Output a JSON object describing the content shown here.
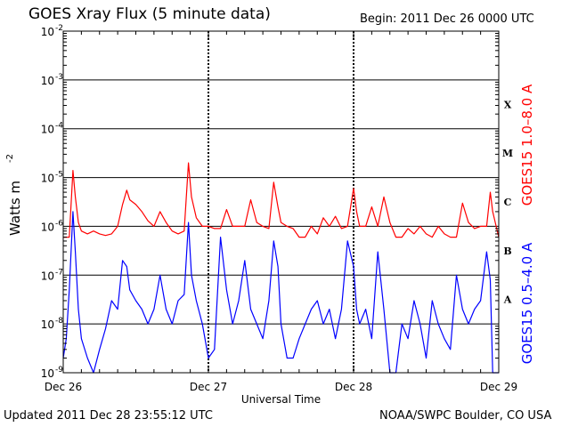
{
  "header": {
    "title": "GOES Xray Flux (5 minute data)",
    "begin": "Begin:  2011 Dec 26 0000 UTC"
  },
  "footer": {
    "updated": "Updated 2011 Dec 28 23:55:12 UTC",
    "source": "NOAA/SWPC Boulder, CO USA"
  },
  "chart_data": {
    "type": "line",
    "xlabel": "Universal Time",
    "ylabel": "Watts m",
    "ylabel_sup": "-2",
    "yscale": "log",
    "ylim": [
      1e-09,
      0.01
    ],
    "xlim": [
      0,
      72
    ],
    "x_unit": "hours since 2011 Dec 26 0000 UTC",
    "x_ticks": [
      {
        "x": 0,
        "label": "Dec 26"
      },
      {
        "x": 24,
        "label": "Dec 27"
      },
      {
        "x": 48,
        "label": "Dec 28"
      },
      {
        "x": 72,
        "label": "Dec 29"
      }
    ],
    "y_ticks": [
      {
        "exp": -9,
        "label": "10",
        "sup": "-9"
      },
      {
        "exp": -8,
        "label": "10",
        "sup": "-8"
      },
      {
        "exp": -7,
        "label": "10",
        "sup": "-7"
      },
      {
        "exp": -6,
        "label": "10",
        "sup": "-6"
      },
      {
        "exp": -5,
        "label": "10",
        "sup": "-5"
      },
      {
        "exp": -4,
        "label": "10",
        "sup": "-4"
      },
      {
        "exp": -3,
        "label": "10",
        "sup": "-3"
      },
      {
        "exp": -2,
        "label": "10",
        "sup": "-2"
      }
    ],
    "flare_classes": [
      {
        "label": "A",
        "exp": -8
      },
      {
        "label": "B",
        "exp": -7
      },
      {
        "label": "C",
        "exp": -6
      },
      {
        "label": "M",
        "exp": -5
      },
      {
        "label": "X",
        "exp": -4
      }
    ],
    "series": [
      {
        "name": "GOES15 1.0–8.0 A",
        "color": "#ff0000",
        "x": [
          0,
          1,
          1.6,
          2,
          2.5,
          3,
          4,
          5,
          6,
          7,
          8,
          9,
          9.8,
          10.5,
          11,
          12,
          13,
          14,
          15,
          16,
          17,
          18,
          19,
          20,
          20.7,
          21.2,
          22,
          23,
          24,
          25,
          26,
          27,
          28,
          29,
          30,
          31,
          32,
          33,
          34,
          34.8,
          35.5,
          36,
          37,
          38,
          39,
          40,
          41,
          42,
          43,
          44,
          45,
          46,
          47,
          48,
          48.5,
          49,
          50,
          51,
          52,
          53,
          54,
          55,
          56,
          57,
          58,
          59,
          60,
          61,
          62,
          63,
          64,
          65,
          66,
          67,
          68,
          69,
          70,
          70.6,
          71,
          72
        ],
        "y": [
          6e-07,
          6e-07,
          1.4e-05,
          4e-06,
          1.2e-06,
          8e-07,
          7e-07,
          8e-07,
          7e-07,
          6.5e-07,
          7e-07,
          1e-06,
          2.8e-06,
          5.5e-06,
          3.5e-06,
          2.8e-06,
          2e-06,
          1.3e-06,
          1e-06,
          2e-06,
          1.2e-06,
          8e-07,
          7e-07,
          8e-07,
          2e-05,
          4e-06,
          1.5e-06,
          1e-06,
          1e-06,
          9e-07,
          9e-07,
          2.2e-06,
          1e-06,
          1e-06,
          1e-06,
          3.5e-06,
          1.2e-06,
          1e-06,
          9e-07,
          8e-06,
          2.5e-06,
          1.2e-06,
          1e-06,
          9e-07,
          6e-07,
          6e-07,
          1e-06,
          7e-07,
          1.5e-06,
          1e-06,
          1.6e-06,
          9e-07,
          1e-06,
          6e-06,
          2e-06,
          1e-06,
          1e-06,
          2.5e-06,
          1e-06,
          4e-06,
          1.2e-06,
          6e-07,
          6e-07,
          9e-07,
          7e-07,
          1e-06,
          7e-07,
          6e-07,
          1e-06,
          7e-07,
          6e-07,
          6e-07,
          3e-06,
          1.2e-06,
          9e-07,
          1e-06,
          1e-06,
          5e-06,
          2e-06,
          6e-07
        ]
      },
      {
        "name": "GOES15 0.5–4.0 A",
        "color": "#0000ff",
        "x": [
          0,
          0.5,
          1,
          1.6,
          2,
          2.5,
          3,
          4,
          5,
          6,
          7,
          8,
          9,
          9.8,
          10.5,
          11,
          12,
          13,
          14,
          15,
          16,
          17,
          18,
          19,
          20,
          20.7,
          21.2,
          22,
          23,
          24,
          25,
          26,
          27,
          28,
          29,
          30,
          31,
          32,
          33,
          34,
          34.8,
          35.5,
          36,
          37,
          38,
          39,
          40,
          41,
          42,
          43,
          44,
          45,
          46,
          47,
          48,
          48.5,
          49,
          50,
          51,
          52,
          53,
          54,
          55,
          56,
          57,
          58,
          59,
          60,
          61,
          62,
          63,
          64,
          65,
          66,
          67,
          68,
          69,
          70,
          70.6,
          71,
          72
        ],
        "y": [
          2e-09,
          5e-09,
          5e-08,
          2e-06,
          3e-07,
          2e-08,
          5e-09,
          2e-09,
          1e-09,
          3e-09,
          8e-09,
          3e-08,
          2e-08,
          2e-07,
          1.5e-07,
          5e-08,
          3e-08,
          2e-08,
          1e-08,
          2e-08,
          1e-07,
          2e-08,
          1e-08,
          3e-08,
          4e-08,
          1.2e-06,
          1e-07,
          3e-08,
          1e-08,
          2e-09,
          3e-09,
          6e-07,
          5e-08,
          1e-08,
          3e-08,
          2e-07,
          2e-08,
          1e-08,
          5e-09,
          3e-08,
          5e-07,
          1.5e-07,
          1e-08,
          2e-09,
          2e-09,
          5e-09,
          1e-08,
          2e-08,
          3e-08,
          1e-08,
          2e-08,
          5e-09,
          2e-08,
          5e-07,
          1.5e-07,
          2e-08,
          1e-08,
          2e-08,
          5e-09,
          3e-07,
          2e-08,
          1e-09,
          1e-09,
          1e-08,
          5e-09,
          3e-08,
          1e-08,
          2e-09,
          3e-08,
          1e-08,
          5e-09,
          3e-09,
          1e-07,
          2e-08,
          1e-08,
          2e-08,
          3e-08,
          3e-07,
          8e-08,
          1e-09,
          1e-09
        ]
      }
    ]
  }
}
